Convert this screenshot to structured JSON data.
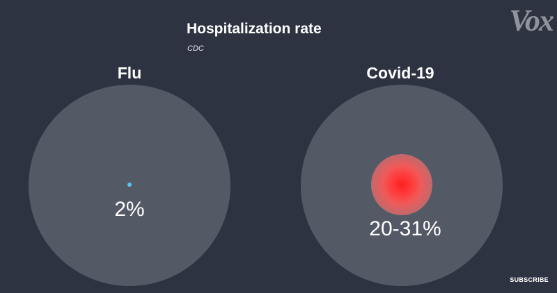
{
  "brand": {
    "logo_text": "Vox"
  },
  "subscribe_label": "SUBSCRIBE",
  "chart_data": {
    "type": "bubble",
    "title": "Hospitalization rate",
    "subtitle": "CDC",
    "unit": "%",
    "series": [
      {
        "name": "Flu",
        "value": 2,
        "display": "2%",
        "color": "#5ec4f0"
      },
      {
        "name": "Covid-19",
        "value_range": [
          20,
          31
        ],
        "display": "20-31%",
        "color": "#ff2020"
      }
    ]
  }
}
